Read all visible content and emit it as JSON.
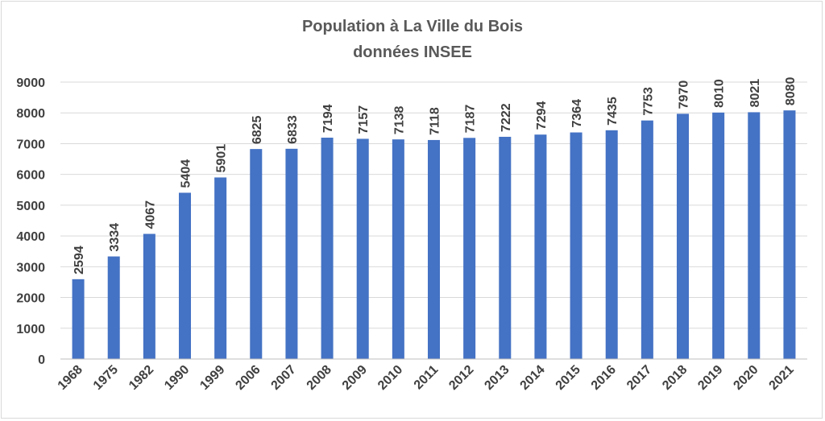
{
  "chart_data": {
    "type": "bar",
    "title": "Population à La Ville du Bois",
    "subtitle": "données INSEE",
    "categories": [
      "1968",
      "1975",
      "1982",
      "1990",
      "1999",
      "2006",
      "2007",
      "2008",
      "2009",
      "2010",
      "2011",
      "2012",
      "2013",
      "2014",
      "2015",
      "2016",
      "2017",
      "2018",
      "2019",
      "2020",
      "2021"
    ],
    "values": [
      2594,
      3334,
      4067,
      5404,
      5901,
      6825,
      6833,
      7194,
      7157,
      7138,
      7118,
      7187,
      7222,
      7294,
      7364,
      7435,
      7753,
      7970,
      8010,
      8021,
      8080
    ],
    "ylim": [
      0,
      9000
    ],
    "yticks": [
      0,
      1000,
      2000,
      3000,
      4000,
      5000,
      6000,
      7000,
      8000,
      9000
    ],
    "grid": true,
    "legend": "none",
    "bar_color": "#4472c4"
  }
}
